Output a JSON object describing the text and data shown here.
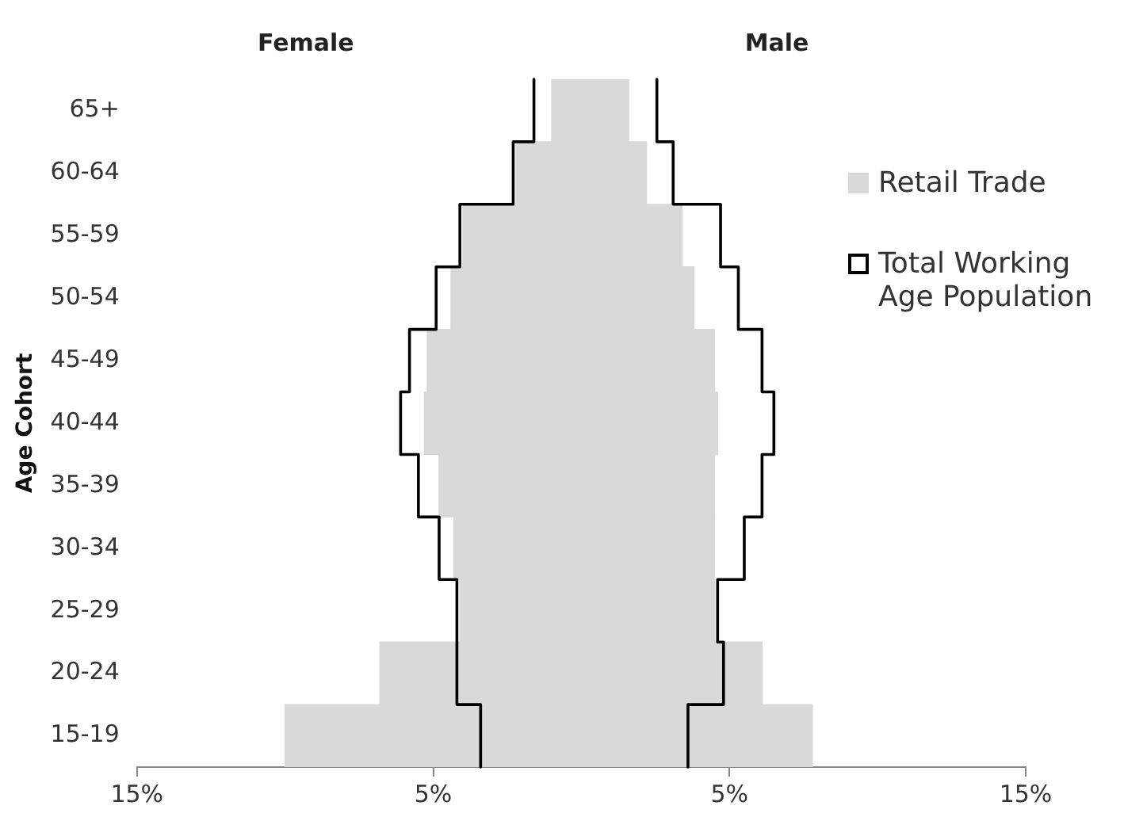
{
  "chart_data": {
    "type": "bar",
    "orientation": "horizontal",
    "stacked": true,
    "ylabel": "Age Cohort",
    "annotations": [
      "Female",
      "Male"
    ],
    "categories": [
      "65+",
      "60-64",
      "55-59",
      "50-54",
      "45-49",
      "40-44",
      "35-39",
      "30-34",
      "25-29",
      "20-24",
      "15-19"
    ],
    "series": [
      {
        "color": "#d9d9d9",
        "values": [
          -1.0,
          -2.2,
          -4.0,
          -4.4,
          -5.2,
          -5.3,
          -4.8,
          -4.3,
          -4.1,
          -6.8,
          -10.0
        ]
      },
      {
        "name": "Retail Trade",
        "color": "#d9d9d9",
        "values": [
          1.6,
          2.2,
          3.4,
          3.8,
          4.5,
          4.6,
          4.5,
          4.5,
          4.5,
          6.1,
          7.8
        ]
      },
      {
        "type": "step",
        "line_style": "solid",
        "color": "#000000",
        "values": [
          -1.6,
          -2.3,
          -4.1,
          -4.9,
          -5.8,
          -6.1,
          -5.5,
          -4.8,
          -4.2,
          -4.2,
          -3.4
        ]
      },
      {
        "type": "step",
        "line_style": "solid",
        "name": "Total Working Age Population",
        "color": "#000000",
        "values": [
          2.55,
          3.1,
          4.7,
          5.3,
          6.1,
          6.5,
          6.1,
          5.5,
          4.6,
          4.8,
          3.6
        ]
      }
    ],
    "xlim": [
      -15,
      15
    ],
    "xticks": [
      {
        "value": -15,
        "label": "15%"
      },
      {
        "value": -5,
        "label": "5%"
      },
      {
        "value": 5,
        "label": "5%"
      },
      {
        "value": 15,
        "label": "15%"
      }
    ],
    "grid": false,
    "legend": "right"
  }
}
